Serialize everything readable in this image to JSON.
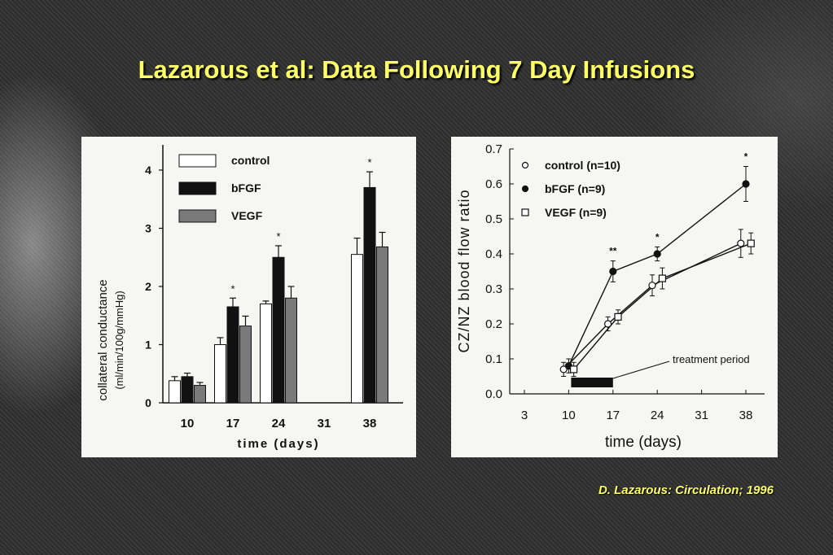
{
  "slide": {
    "title": "Lazarous et al: Data Following 7 Day Infusions",
    "citation": "D. Lazarous:  Circulation; 1996"
  },
  "chart_data": [
    {
      "type": "bar",
      "ylabel_line1": "collateral conductance",
      "ylabel_line2": "(ml/min/100g/mmHg)",
      "xlabel": "time (days)",
      "categories": [
        "10",
        "17",
        "24",
        "31",
        "38"
      ],
      "yticks": [
        "0",
        "1",
        "2",
        "3",
        "4"
      ],
      "ylim": [
        0,
        4.3
      ],
      "series": [
        {
          "name": "control",
          "color": "#ffffff",
          "values": [
            0.38,
            1.0,
            1.7,
            null,
            2.55
          ],
          "errors": [
            0.07,
            0.12,
            0.05,
            null,
            0.28
          ]
        },
        {
          "name": "bFGF",
          "color": "#111111",
          "values": [
            0.45,
            1.65,
            2.5,
            null,
            3.7
          ],
          "errors": [
            0.06,
            0.15,
            0.2,
            null,
            0.27
          ]
        },
        {
          "name": "VEGF",
          "color": "#7a7a7a",
          "values": [
            0.3,
            1.32,
            1.8,
            null,
            2.68
          ],
          "errors": [
            0.05,
            0.17,
            0.2,
            null,
            0.25
          ]
        }
      ],
      "annotations": [
        {
          "category": "17",
          "text": "*"
        },
        {
          "category": "24",
          "text": "*"
        },
        {
          "category": "38",
          "text": "*"
        }
      ],
      "legend": "top-left"
    },
    {
      "type": "line",
      "ylabel": "CZ/NZ blood flow ratio",
      "xlabel": "time (days)",
      "x": [
        10,
        17,
        24,
        38
      ],
      "xticks": [
        "3",
        "10",
        "17",
        "24",
        "31",
        "38"
      ],
      "yticks": [
        "0.0",
        "0.1",
        "0.2",
        "0.3",
        "0.4",
        "0.5",
        "0.6",
        "0.7"
      ],
      "xlim": [
        3,
        38
      ],
      "ylim": [
        0,
        0.7
      ],
      "series": [
        {
          "name": "control (n=10)",
          "marker": "open-circle",
          "values": [
            0.07,
            0.2,
            0.31,
            0.43
          ],
          "errors": [
            0.02,
            0.02,
            0.03,
            0.04
          ]
        },
        {
          "name": "bFGF (n=9)",
          "marker": "filled-circle",
          "values": [
            0.08,
            0.35,
            0.4,
            0.6
          ],
          "errors": [
            0.02,
            0.03,
            0.02,
            0.05
          ]
        },
        {
          "name": "VEGF (n=9)",
          "marker": "open-square",
          "values": [
            0.07,
            0.22,
            0.33,
            0.43
          ],
          "errors": [
            0.02,
            0.02,
            0.03,
            0.03
          ]
        }
      ],
      "annotations": [
        {
          "x": 17,
          "text": "**"
        },
        {
          "x": 24,
          "text": "*"
        },
        {
          "x": 38,
          "text": "*"
        }
      ],
      "treatment_label": "treatment period",
      "treatment_range": [
        10,
        17
      ],
      "legend": "top-left"
    }
  ]
}
